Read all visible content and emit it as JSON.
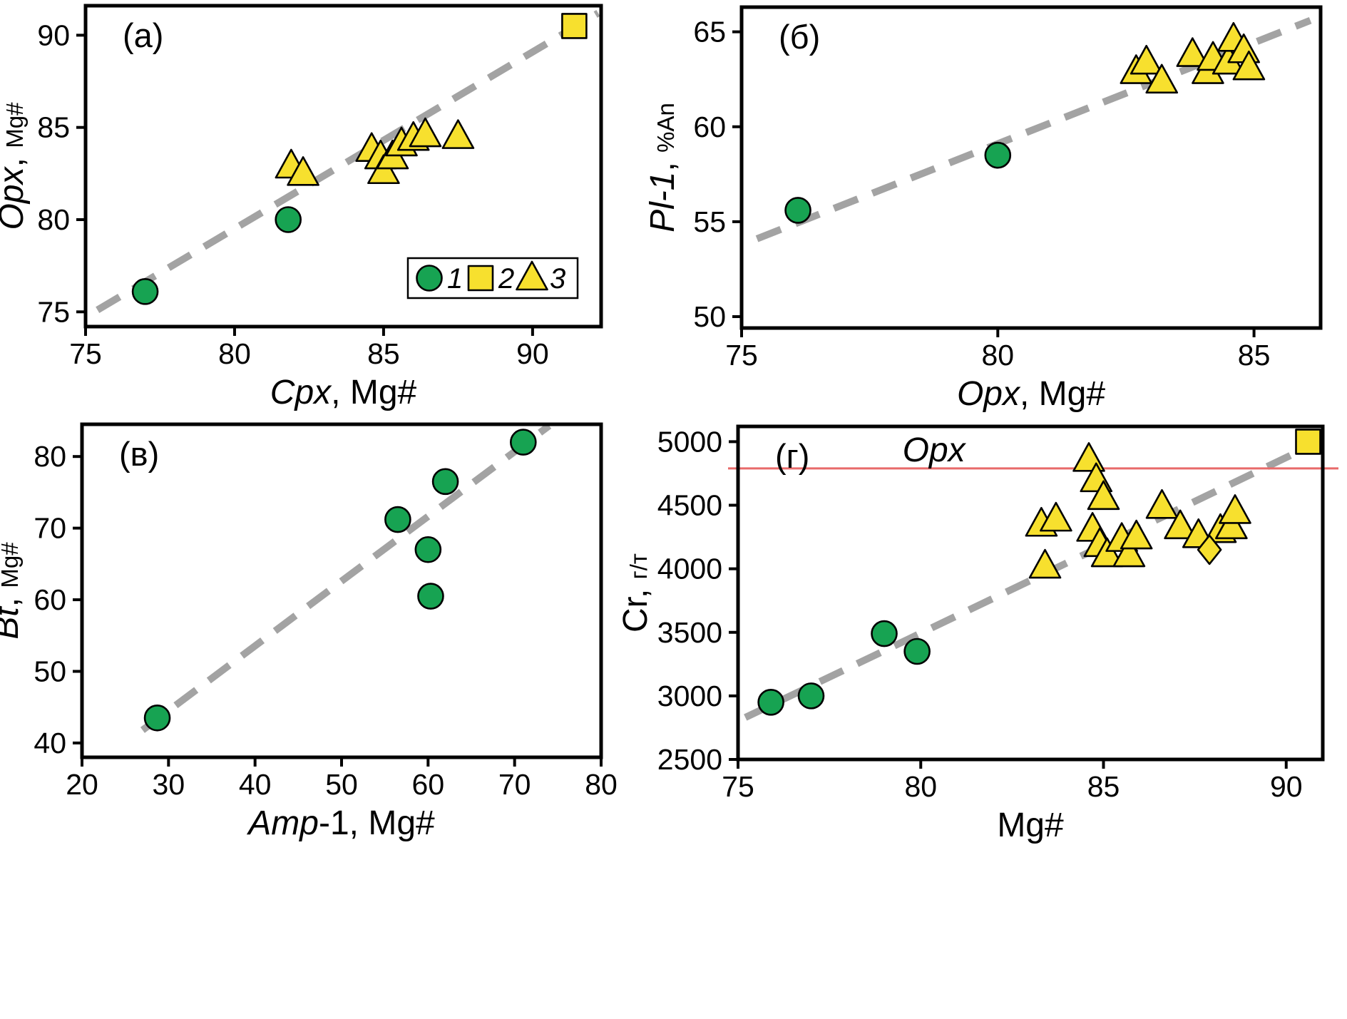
{
  "figure": {
    "background": "#ffffff",
    "colors": {
      "green": "#17a352",
      "yellow": "#f7e02e",
      "edge": "#000000",
      "trend": "#a3a3a3",
      "red": "#e86a6a",
      "axis": "#000000"
    },
    "legend": {
      "position": "inside-lower-right-of-panel-a",
      "items": [
        {
          "marker": "circle",
          "color": "green",
          "label": "1"
        },
        {
          "marker": "square",
          "color": "yellow",
          "label": "2"
        },
        {
          "marker": "triangle",
          "color": "yellow",
          "label": "3"
        }
      ]
    }
  },
  "chart_data": [
    {
      "type": "scatter",
      "tag": "(а)",
      "xlabel": "Cpx, Mg#",
      "xlabel_parts": [
        {
          "text": "Cpx",
          "italic": true
        },
        {
          "text": ", Mg#"
        }
      ],
      "ylabel": "Opx, Mg#",
      "ylabel_parts": [
        {
          "text": "Opx",
          "italic": true
        },
        {
          "text": ", "
        },
        {
          "text": "Mg#",
          "small": true
        }
      ],
      "xlim": [
        75,
        92.3
      ],
      "ylim": [
        74.2,
        91.6
      ],
      "xticks": [
        75,
        80,
        85,
        90
      ],
      "yticks": [
        75,
        80,
        85,
        90
      ],
      "grid": false,
      "trend_line": {
        "style": "dashed",
        "from": [
          75.4,
          75.1
        ],
        "to": [
          92.2,
          91.2
        ]
      },
      "show_legend": true,
      "series": [
        {
          "name": "1",
          "marker": "circle",
          "color": "green",
          "points": [
            [
              77.0,
              76.1
            ],
            [
              81.8,
              80.0
            ]
          ]
        },
        {
          "name": "2",
          "marker": "square",
          "color": "yellow",
          "points": [
            [
              91.4,
              90.5
            ]
          ]
        },
        {
          "name": "3",
          "marker": "triangle",
          "color": "yellow",
          "points": [
            [
              81.9,
              82.9
            ],
            [
              82.3,
              82.5
            ],
            [
              84.6,
              83.8
            ],
            [
              84.9,
              83.4
            ],
            [
              85.0,
              82.6
            ],
            [
              85.3,
              83.4
            ],
            [
              85.6,
              84.1
            ],
            [
              86.0,
              84.4
            ],
            [
              86.4,
              84.6
            ],
            [
              87.5,
              84.5
            ]
          ]
        }
      ]
    },
    {
      "type": "scatter",
      "tag": "(б)",
      "xlabel": "Opx, Mg#",
      "xlabel_parts": [
        {
          "text": "Opx",
          "italic": true
        },
        {
          "text": ", Mg#"
        }
      ],
      "ylabel": "Pl-1, %An",
      "ylabel_parts": [
        {
          "text": "Pl-1",
          "italic": true
        },
        {
          "text": ", "
        },
        {
          "text": "%An",
          "small": true
        }
      ],
      "xlim": [
        75,
        86.3
      ],
      "ylim": [
        49.4,
        66.3
      ],
      "xticks": [
        75,
        80,
        85
      ],
      "yticks": [
        50,
        55,
        60,
        65
      ],
      "grid": false,
      "trend_line": {
        "style": "dashed",
        "from": [
          75.3,
          54.1
        ],
        "to": [
          86.1,
          65.6
        ]
      },
      "show_legend": false,
      "series": [
        {
          "name": "1",
          "marker": "circle",
          "color": "green",
          "points": [
            [
              76.1,
              55.6
            ],
            [
              80.0,
              58.5
            ]
          ]
        },
        {
          "name": "3",
          "marker": "triangle",
          "color": "yellow",
          "points": [
            [
              82.7,
              62.9
            ],
            [
              82.9,
              63.4
            ],
            [
              83.2,
              62.4
            ],
            [
              83.8,
              63.8
            ],
            [
              84.1,
              62.9
            ],
            [
              84.2,
              63.6
            ],
            [
              84.5,
              63.4
            ],
            [
              84.6,
              64.6
            ],
            [
              84.8,
              64.0
            ],
            [
              84.9,
              63.1
            ]
          ]
        }
      ]
    },
    {
      "type": "scatter",
      "tag": "(в)",
      "xlabel": "Amp-1, Mg#",
      "xlabel_parts": [
        {
          "text": "Amp",
          "italic": true
        },
        {
          "text": "-1, Mg#"
        }
      ],
      "ylabel": "Bt, Mg#",
      "ylabel_parts": [
        {
          "text": "Bt",
          "italic": true
        },
        {
          "text": ", "
        },
        {
          "text": "Mg#",
          "small": true
        }
      ],
      "xlim": [
        20,
        80
      ],
      "ylim": [
        38,
        84.5
      ],
      "xticks": [
        20,
        30,
        40,
        50,
        60,
        70,
        80
      ],
      "yticks": [
        40,
        50,
        60,
        70,
        80
      ],
      "grid": false,
      "trend_line": {
        "style": "dashed",
        "from": [
          27.0,
          41.8
        ],
        "to": [
          74.0,
          84.3
        ]
      },
      "show_legend": false,
      "series": [
        {
          "name": "1",
          "marker": "circle",
          "color": "green",
          "points": [
            [
              28.7,
              43.5
            ],
            [
              56.5,
              71.2
            ],
            [
              60.0,
              67.0
            ],
            [
              60.3,
              60.5
            ],
            [
              62.0,
              76.5
            ],
            [
              71.0,
              82.0
            ]
          ]
        }
      ]
    },
    {
      "type": "scatter",
      "tag": "(г)",
      "xlabel": "Mg#",
      "xlabel_parts": [
        {
          "text": "Mg#"
        }
      ],
      "ylabel": "Cr, г/т",
      "ylabel_parts": [
        {
          "text": "Cr"
        },
        {
          "text": ", "
        },
        {
          "text": "г/т",
          "small": true
        }
      ],
      "xlim": [
        75,
        91
      ],
      "ylim": [
        2500,
        5120
      ],
      "xticks": [
        75,
        80,
        85,
        90
      ],
      "yticks": [
        2500,
        3000,
        3500,
        4000,
        4500,
        5000
      ],
      "grid": false,
      "trend_line": {
        "style": "dashed",
        "from": [
          75.2,
          2830
        ],
        "to": [
          90.9,
          5000
        ]
      },
      "red_line": {
        "y": 4790,
        "label": "Opx",
        "label_x": 79.5
      },
      "show_legend": false,
      "series": [
        {
          "name": "1",
          "marker": "circle",
          "color": "green",
          "points": [
            [
              75.9,
              2950
            ],
            [
              77.0,
              3000
            ],
            [
              79.0,
              3490
            ],
            [
              79.9,
              3350
            ]
          ]
        },
        {
          "name": "2",
          "marker": "square",
          "color": "yellow",
          "points": [
            [
              90.6,
              5000
            ]
          ]
        },
        {
          "name": "3",
          "marker": "triangle",
          "color": "yellow",
          "points": [
            [
              83.3,
              4350
            ],
            [
              83.7,
              4390
            ],
            [
              83.4,
              4020
            ],
            [
              84.6,
              4860
            ],
            [
              84.8,
              4700
            ],
            [
              85.0,
              4560
            ],
            [
              84.7,
              4310
            ],
            [
              84.9,
              4190
            ],
            [
              85.1,
              4110
            ],
            [
              85.5,
              4230
            ],
            [
              85.7,
              4110
            ],
            [
              85.9,
              4250
            ],
            [
              86.6,
              4490
            ],
            [
              87.1,
              4330
            ],
            [
              87.6,
              4260
            ],
            [
              88.2,
              4300
            ],
            [
              88.5,
              4330
            ],
            [
              88.6,
              4450
            ]
          ]
        },
        {
          "name": "3",
          "marker": "diamond",
          "color": "yellow",
          "points": [
            [
              87.9,
              4150
            ]
          ]
        }
      ]
    }
  ]
}
